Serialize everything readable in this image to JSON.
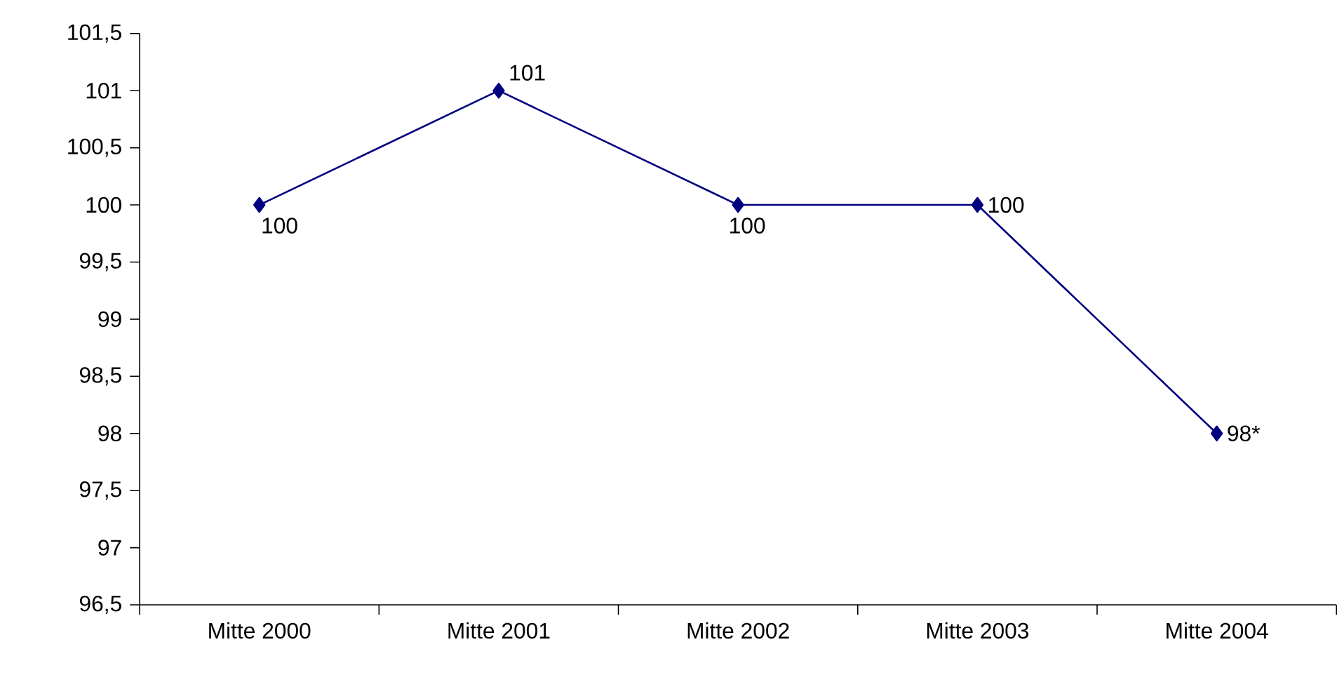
{
  "chart_data": {
    "type": "line",
    "categories": [
      "Mitte 2000",
      "Mitte 2001",
      "Mitte 2002",
      "Mitte 2003",
      "Mitte 2004"
    ],
    "series": [
      {
        "color": "#000080",
        "values": [
          100,
          101,
          100,
          100,
          98
        ],
        "value_labels": [
          "100",
          "101",
          "100",
          "100",
          "98*"
        ]
      }
    ],
    "ylim": [
      96.5,
      101.5
    ],
    "yticks": [
      {
        "value": 96.5,
        "label": "96,5"
      },
      97,
      {
        "value": 97.5,
        "label": "97,5"
      },
      98,
      {
        "value": 98.5,
        "label": "98,5"
      },
      99,
      {
        "value": 99.5,
        "label": "99,5"
      },
      100,
      {
        "value": 100.5,
        "label": "100,5"
      },
      101,
      {
        "value": 101.5,
        "label": "101,5"
      }
    ],
    "marker": "diamond",
    "line_style": "solid",
    "grid": false,
    "legend": false
  }
}
